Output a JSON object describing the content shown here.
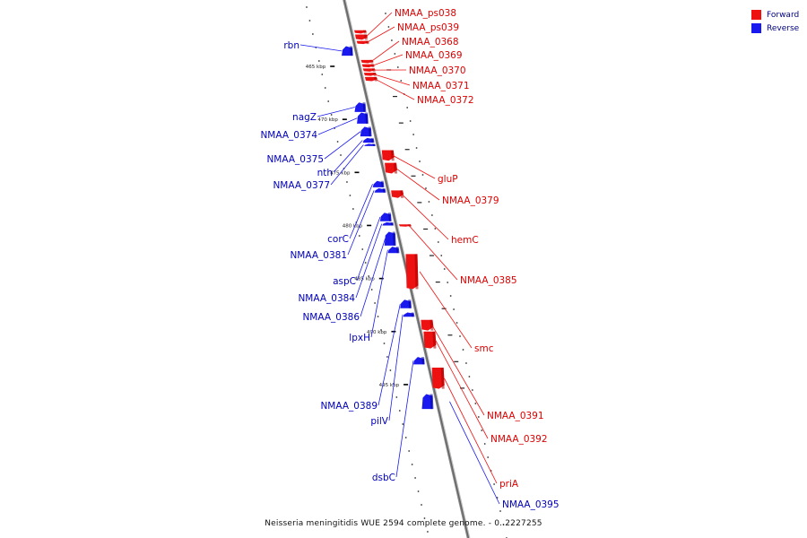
{
  "legend": {
    "forward_label": "Forward",
    "reverse_label": "Reverse"
  },
  "colors": {
    "forward": "#ee1111",
    "reverse": "#1a1aee",
    "forward_label": "#dd0000",
    "reverse_label": "#0000bb",
    "backbone": "#888888"
  },
  "caption": "Neisseria meningitidis WUE 2594 complete genome. - 0..2227255",
  "chart_data": {
    "type": "linear-genome-map",
    "title": "Neisseria meningitidis WUE 2594 complete genome. - 0..2227255",
    "unit": "kbp",
    "ticks": [
      {
        "kbp": 465,
        "label": "465 kbp"
      },
      {
        "kbp": 470,
        "label": "470 kbp"
      },
      {
        "kbp": 475,
        "label": "475 kbp"
      },
      {
        "kbp": 480,
        "label": "480 kbp"
      },
      {
        "kbp": 485,
        "label": "485 kbp"
      },
      {
        "kbp": 490,
        "label": "490 kbp"
      },
      {
        "kbp": 495,
        "label": "495 kbp"
      }
    ],
    "genes": [
      {
        "name": "",
        "strand": "forward",
        "start": 461.6,
        "end": 461.9
      },
      {
        "name": "NMAA_ps038",
        "strand": "forward",
        "start": 462.0,
        "end": 462.5
      },
      {
        "name": "NMAA_ps039",
        "strand": "forward",
        "start": 462.6,
        "end": 462.9
      },
      {
        "name": "rbn",
        "strand": "reverse",
        "start": 463.1,
        "end": 464.0
      },
      {
        "name": "NMAA_0368",
        "strand": "forward",
        "start": 464.4,
        "end": 464.7
      },
      {
        "name": "NMAA_0369",
        "strand": "forward",
        "start": 464.8,
        "end": 465.1
      },
      {
        "name": "NMAA_0370",
        "strand": "forward",
        "start": 465.2,
        "end": 465.5
      },
      {
        "name": "NMAA_0371",
        "strand": "forward",
        "start": 465.6,
        "end": 465.9
      },
      {
        "name": "NMAA_0372",
        "strand": "forward",
        "start": 466.0,
        "end": 466.4
      },
      {
        "name": "nagZ",
        "strand": "reverse",
        "start": 468.4,
        "end": 469.3
      },
      {
        "name": "NMAA_0374",
        "strand": "reverse",
        "start": 469.35,
        "end": 470.4
      },
      {
        "name": "NMAA_0375",
        "strand": "reverse",
        "start": 470.7,
        "end": 471.6
      },
      {
        "name": "nth",
        "strand": "reverse",
        "start": 471.75,
        "end": 472.2
      },
      {
        "name": "NMAA_0377",
        "strand": "reverse",
        "start": 472.3,
        "end": 472.5
      },
      {
        "name": "gluP",
        "strand": "forward",
        "start": 472.9,
        "end": 473.9
      },
      {
        "name": "NMAA_0379",
        "strand": "forward",
        "start": 474.1,
        "end": 475.1
      },
      {
        "name": "corC",
        "strand": "reverse",
        "start": 475.8,
        "end": 476.4
      },
      {
        "name": "NMAA_0381",
        "strand": "reverse",
        "start": 476.5,
        "end": 476.9
      },
      {
        "name": "hemC",
        "strand": "forward",
        "start": 476.7,
        "end": 477.4
      },
      {
        "name": "aspC",
        "strand": "reverse",
        "start": 478.8,
        "end": 479.6
      },
      {
        "name": "NMAA_0384",
        "strand": "reverse",
        "start": 479.7,
        "end": 480.0
      },
      {
        "name": "NMAA_0385",
        "strand": "forward",
        "start": 479.9,
        "end": 480.1
      },
      {
        "name": "NMAA_0386",
        "strand": "reverse",
        "start": 480.6,
        "end": 481.9
      },
      {
        "name": "lpxH",
        "strand": "reverse",
        "start": 482.0,
        "end": 482.6
      },
      {
        "name": "smc",
        "strand": "forward",
        "start": 482.7,
        "end": 486.0
      },
      {
        "name": "NMAA_0389",
        "strand": "reverse",
        "start": 487.0,
        "end": 487.8
      },
      {
        "name": "pilV",
        "strand": "reverse",
        "start": 488.2,
        "end": 488.6
      },
      {
        "name": "NMAA_0391",
        "strand": "forward",
        "start": 488.9,
        "end": 489.9
      },
      {
        "name": "NMAA_0392",
        "strand": "forward",
        "start": 490.0,
        "end": 491.6
      },
      {
        "name": "dsbC",
        "strand": "reverse",
        "start": 492.4,
        "end": 493.1
      },
      {
        "name": "priA",
        "strand": "forward",
        "start": 493.4,
        "end": 495.4
      },
      {
        "name": "NMAA_0395",
        "strand": "reverse",
        "start": 495.9,
        "end": 497.3
      }
    ]
  }
}
